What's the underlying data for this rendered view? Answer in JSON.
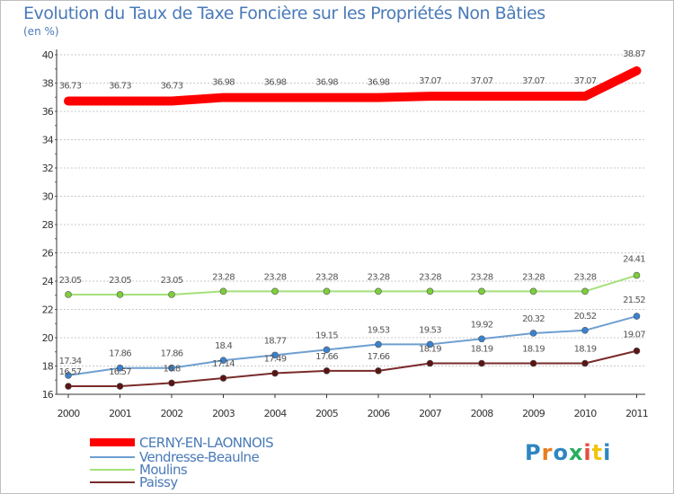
{
  "title": "Evolution du Taux de Taxe Foncière sur les Propriétés Non Bâties",
  "subtitle": "(en %)",
  "logo": [
    "P",
    "r",
    "o",
    "x",
    "i",
    "t",
    "i"
  ],
  "colors": {
    "text": "#4a7ab8",
    "grid": "#c8c8c8",
    "axis": "#333333",
    "logo": [
      "#2e86c1",
      "#e67e22",
      "#2e86c1",
      "#27ae60",
      "#e74c3c",
      "#f1c40f",
      "#2e86c1"
    ]
  },
  "chart_data": {
    "type": "line",
    "title": "Evolution du Taux de Taxe Foncière sur les Propriétés Non Bâties",
    "ylabel": "(en %)",
    "xlabel": "",
    "x": [
      "2000",
      "2001",
      "2002",
      "2003",
      "2004",
      "2005",
      "2006",
      "2007",
      "2008",
      "2009",
      "2010",
      "2011"
    ],
    "ylim": [
      16,
      40
    ],
    "yticks": [
      16,
      18,
      20,
      22,
      24,
      26,
      28,
      30,
      32,
      34,
      36,
      38,
      40
    ],
    "grid": "horizontal",
    "legend_position": "bottom-left",
    "series": [
      {
        "name": "CERNY-EN-LAONNOIS",
        "color": "#ff0000",
        "emphasis": true,
        "values": [
          36.73,
          36.73,
          36.73,
          36.98,
          36.98,
          36.98,
          36.98,
          37.07,
          37.07,
          37.07,
          37.07,
          38.87
        ],
        "labels": [
          "36.73",
          "36.73",
          "36.73",
          "36.98",
          "36.98",
          "36.98",
          "36.98",
          "37.07",
          "37.07",
          "37.07",
          "37.07",
          "38.87"
        ]
      },
      {
        "name": "Vendresse-Beaulne",
        "color": "#6e9fd0",
        "marker": "#3a82d0",
        "values": [
          17.34,
          17.86,
          17.86,
          18.4,
          18.77,
          19.15,
          19.53,
          19.53,
          19.92,
          20.32,
          20.52,
          21.52
        ],
        "labels": [
          "17.34",
          "17.86",
          "17.86",
          "18.4",
          "18.77",
          "19.15",
          "19.53",
          "19.53",
          "19.92",
          "20.32",
          "20.52",
          "21.52"
        ]
      },
      {
        "name": "Moulins",
        "color": "#a5e07a",
        "marker": "#7dcf3a",
        "values": [
          23.05,
          23.05,
          23.05,
          23.28,
          23.28,
          23.28,
          23.28,
          23.28,
          23.28,
          23.28,
          23.28,
          24.41
        ],
        "labels": [
          "23.05",
          "23.05",
          "23.05",
          "23.28",
          "23.28",
          "23.28",
          "23.28",
          "23.28",
          "23.28",
          "23.28",
          "23.28",
          "24.41"
        ]
      },
      {
        "name": "Paissy",
        "color": "#7a2a2a",
        "marker": "#5a1414",
        "values": [
          16.57,
          16.57,
          16.8,
          17.14,
          17.49,
          17.66,
          17.66,
          18.19,
          18.19,
          18.19,
          18.19,
          19.07
        ],
        "labels": [
          "16.57",
          "16.57",
          "16.8",
          "17.14",
          "17.49",
          "17.66",
          "17.66",
          "18.19",
          "18.19",
          "18.19",
          "18.19",
          "19.07"
        ]
      }
    ]
  }
}
